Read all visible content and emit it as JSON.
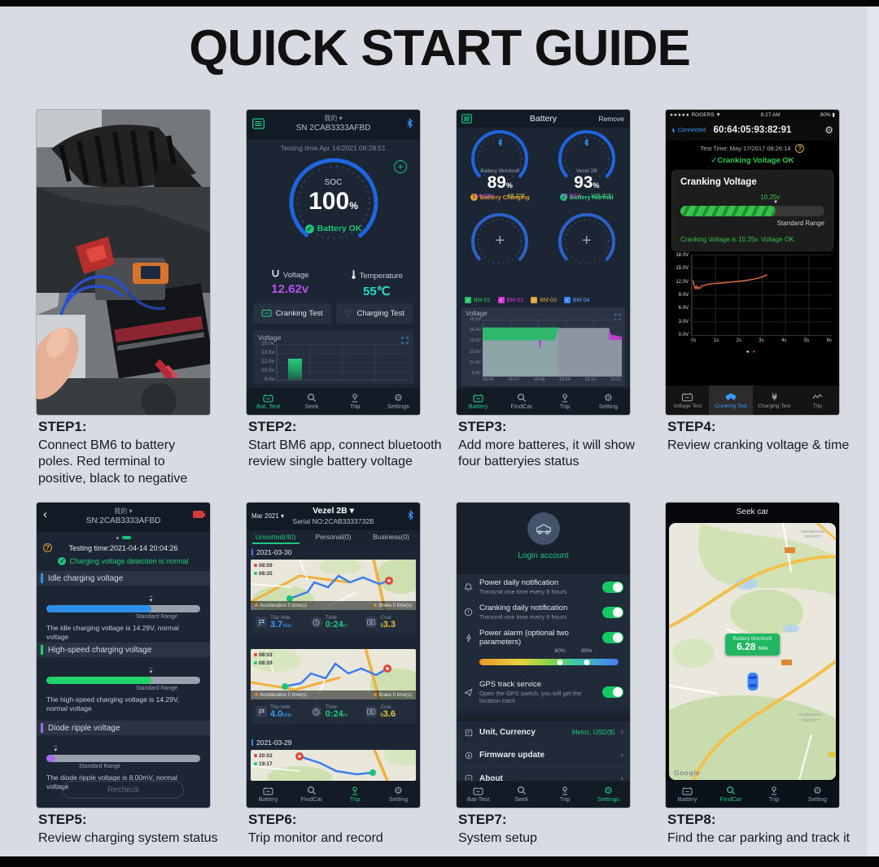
{
  "page": {
    "title": "QUICK START GUIDE"
  },
  "steps": [
    {
      "label": "STEP1:",
      "desc": "Connect BM6 to battery poles. Red terminal to positive, black to negative"
    },
    {
      "label": "STEP2:",
      "desc": "Start BM6 app, connect bluetooth review single battery voltage"
    },
    {
      "label": "STEP3:",
      "desc": "Add more batteres, it will show four batteryies status"
    },
    {
      "label": "STEP4:",
      "desc": "Review cranking voltage & time"
    },
    {
      "label": "STEP5:",
      "desc": "Review charging system status"
    },
    {
      "label": "STEP6:",
      "desc": "Trip monitor and record"
    },
    {
      "label": "STEP7:",
      "desc": "System setup"
    },
    {
      "label": "STEP8:",
      "desc": "Find the car parking and track it"
    }
  ],
  "phone2": {
    "title": "我的 ▾",
    "sn": "SN 2CAB3333AFBD",
    "testing_time": "Testing time Apr 14/2021 08:28:51",
    "soc_label": "SOC",
    "soc_value": "100",
    "soc_unit": "%",
    "battery_status": "Battery OK",
    "voltage_label": "Voltage",
    "voltage_value": "12.62v",
    "temp_label": "Temperature",
    "temp_value": "55℃",
    "btn_cranking": "Cranking Test",
    "btn_charging": "Charging Test",
    "accent_voltage": "#b44fe8",
    "accent_temp": "#2bd8c5",
    "chart": {
      "title": "Voltage",
      "y_ticks": [
        "15.0v",
        "13.5v",
        "12.0v",
        "10.5v",
        "9.0v"
      ],
      "y_min": 9,
      "y_max": 15,
      "bar_value": 12.6
    },
    "nav": [
      {
        "label": "Bat. Test"
      },
      {
        "label": "Seek"
      },
      {
        "label": "Trip"
      },
      {
        "label": "Settings"
      }
    ]
  },
  "phone3": {
    "title": "Battery",
    "action": "Remove",
    "gauges": [
      {
        "name": "Battery Monitor6",
        "pct": "89",
        "unit": "%",
        "voltage": "14.20V",
        "temp": "48.2°F",
        "status": "Battery Charging",
        "status_color": "#e09b2d",
        "temp_color": "#c2c93e"
      },
      {
        "name": "Vezel 2B",
        "pct": "93",
        "unit": "%",
        "voltage": "12.61V",
        "temp": "105.8°F",
        "status": "Battery Normal",
        "status_color": "#2fd57a",
        "temp_color": "#3ed57f"
      }
    ],
    "legend": [
      {
        "label": "BM-01",
        "color": "#27c15e"
      },
      {
        "label": "BM-02",
        "color": "#d339d3"
      },
      {
        "label": "BM-03",
        "color": "#e0a23c"
      },
      {
        "label": "BM-04",
        "color": "#3b82f6"
      }
    ],
    "chart": {
      "title": "Voltage",
      "y_ticks": [
        "15.0V",
        "14.0V",
        "13.0V",
        "12.0V",
        "11.0V",
        "9.0V"
      ],
      "x_ticks": [
        "15:06",
        "15:07",
        "15:08",
        "15:09",
        "15:10",
        "15:11"
      ],
      "y_min": 9.0,
      "y_max": 15.2,
      "areas": [
        {
          "color": "#2fbf71",
          "opacity": 0.95,
          "points": [
            [
              0,
              14.35
            ],
            [
              0.545,
              14.35
            ],
            [
              0.545,
              9
            ],
            [
              0,
              9
            ]
          ]
        },
        {
          "color": "#97a1ad",
          "opacity": 0.9,
          "points": [
            [
              0,
              12.95
            ],
            [
              0.52,
              12.95
            ],
            [
              0.545,
              14.3
            ],
            [
              0.91,
              14.3
            ],
            [
              0.928,
              13.0
            ],
            [
              1,
              13.0
            ],
            [
              1,
              9
            ],
            [
              0,
              9
            ]
          ]
        },
        {
          "color": "#c13fd6",
          "opacity": 0.95,
          "points": [
            [
              0.402,
              12.95
            ],
            [
              0.412,
              11.9
            ],
            [
              0.424,
              12.95
            ]
          ]
        },
        {
          "color": "#c13fd6",
          "opacity": 0.95,
          "points": [
            [
              0.905,
              14.3
            ],
            [
              0.925,
              13.55
            ],
            [
              1,
              13.35
            ],
            [
              1,
              12.98
            ],
            [
              0.905,
              12.98
            ]
          ]
        }
      ]
    },
    "nav": [
      {
        "label": "Battery"
      },
      {
        "label": "FindCar"
      },
      {
        "label": "Trip"
      },
      {
        "label": "Setting"
      }
    ]
  },
  "phone4": {
    "carrier": "ROGERS",
    "time": "8:27 AM",
    "battery_pct": "90%",
    "connected": "Connected",
    "mac": "60:64:05:93:82:91",
    "test_time": "Test Time:  May 17/2017 08:26:14",
    "status_ok": "Cranking Voltage OK",
    "card_title": "Cranking Voltage",
    "card_value": "10.25v",
    "range_label": "Standard Range",
    "card_message": "Cranking Voltage is 10.25v. Voltage OK",
    "chart": {
      "y_ticks": [
        "18.0V",
        "15.0V",
        "12.0V",
        "9.0V",
        "6.0V",
        "3.0V",
        "0.0V"
      ],
      "x_ticks": [
        "0s",
        "1s",
        "2s",
        "3s",
        "4s",
        "5s",
        "6s"
      ],
      "x_max": 6,
      "y_max": 18,
      "line_color": "#e2703c",
      "points": [
        [
          0.05,
          12.3
        ],
        [
          0.1,
          11.1
        ],
        [
          0.16,
          10.5
        ],
        [
          0.2,
          11.0
        ],
        [
          0.25,
          10.4
        ],
        [
          0.3,
          10.8
        ],
        [
          0.36,
          10.5
        ],
        [
          0.45,
          11.1
        ],
        [
          0.55,
          11.15
        ],
        [
          0.65,
          11.3
        ],
        [
          0.8,
          11.5
        ],
        [
          1.0,
          11.6
        ],
        [
          1.3,
          11.7
        ],
        [
          1.6,
          11.85
        ],
        [
          1.9,
          12.0
        ],
        [
          2.2,
          12.15
        ],
        [
          2.5,
          12.35
        ],
        [
          2.8,
          12.6
        ],
        [
          3.0,
          12.85
        ],
        [
          3.2,
          13.2
        ],
        [
          3.35,
          13.55
        ]
      ]
    },
    "nav": [
      {
        "label": "Voltage Test"
      },
      {
        "label": "Cranking Test"
      },
      {
        "label": "Charging Test"
      },
      {
        "label": "Trip"
      }
    ]
  },
  "phone5": {
    "title": "我的 ▾",
    "sn": "SN:2CAB3333AFBD",
    "testing_time": "Testing time:2021-04-14 20:04:26",
    "status": "Charging voltage detection is normal",
    "sections": [
      {
        "title": "Idle charging voltage",
        "range": "Standard Range",
        "message": "The idle charging voltage is 14.29V, normal voltage",
        "color": "#2f8fe8",
        "fill": 68
      },
      {
        "title": "High-speed charging voltage",
        "range": "Standard Range",
        "message": "The high-speed charging voltage is 14.29V, normal voltage",
        "color": "#22d36b",
        "fill": 68
      },
      {
        "title": "Diode ripple voltage",
        "range": "Standard Range",
        "message": "The diode ripple voltage is 8.00mV, normal voltage",
        "color": "#a86bf0",
        "fill": 6
      }
    ],
    "recheck": "Recheck"
  },
  "phone6": {
    "month": "Mar 2021 ▾",
    "title": "Vezel 2B ▾",
    "serial": "Serial NO:2CAB3333732B",
    "tabs": [
      {
        "label": "Unsorted(40)"
      },
      {
        "label": "Personal(0)"
      },
      {
        "label": "Business(0)"
      }
    ],
    "date1": "2021-03-30",
    "date2": "2021-03-29",
    "trips": [
      {
        "t1": "08:59",
        "t2": "08:35",
        "acc": "Acceleration 0 time(s)",
        "brake": "Brake 0 time(s)",
        "mile_label": "Trip mile",
        "mile": "3.7",
        "mile_unit": "Mile",
        "time_label": "Time",
        "time": "0:24",
        "time_unit": "m",
        "cost_label": "Cost",
        "cost_cur": "$",
        "cost": "3.3"
      },
      {
        "t1": "08:53",
        "t2": "08:29",
        "acc": "Acceleration 0 time(s)",
        "brake": "Brake 0 time(s)",
        "mile_label": "Trip mile",
        "mile": "4.0",
        "mile_unit": "Mile",
        "time_label": "Time",
        "time": "0:24",
        "time_unit": "m",
        "cost_label": "Cost",
        "cost_cur": "$",
        "cost": "3.6"
      },
      {
        "t1": "20:53",
        "t2": "19:17"
      }
    ],
    "nav": [
      {
        "label": "Battery"
      },
      {
        "label": "FindCar"
      },
      {
        "label": "Trip"
      },
      {
        "label": "Setting"
      }
    ]
  },
  "phone7": {
    "login": "Login account",
    "rows": [
      {
        "title": "Power daily notification",
        "sub": "Transmit one time every 9 hours"
      },
      {
        "title": "Cranking daily notification",
        "sub": "Transmit one time every 9 hours"
      },
      {
        "title": "Power alarm (optional two parameters)",
        "sub": ""
      }
    ],
    "slider": {
      "label1": "60%",
      "label2": "80%",
      "pos1": 58,
      "pos2": 77
    },
    "gps": {
      "title": "GPS track service",
      "sub": "Open the GPS switch, you will get the location track"
    },
    "menu": [
      {
        "label": "Unit, Currency",
        "value": "Metric, USD($)"
      },
      {
        "label": "Firmware update",
        "value": ""
      },
      {
        "label": "About",
        "value": ""
      }
    ],
    "nav": [
      {
        "label": "Bat-Test"
      },
      {
        "label": "Seek"
      },
      {
        "label": "Trip"
      },
      {
        "label": "Settings"
      }
    ]
  },
  "phone8": {
    "title": "Seek car",
    "callout_name": "Battery Monitor6",
    "callout_value": "6.28",
    "callout_unit": "Mile",
    "map_label_top": "RESIDENTIAL DISTRICT",
    "map_label_bottom": "RESIDENTIAL DISTRICT",
    "google": "Google",
    "nav": [
      {
        "label": "Battery"
      },
      {
        "label": "FindCar"
      },
      {
        "label": "Trip"
      },
      {
        "label": "Setting"
      }
    ]
  }
}
